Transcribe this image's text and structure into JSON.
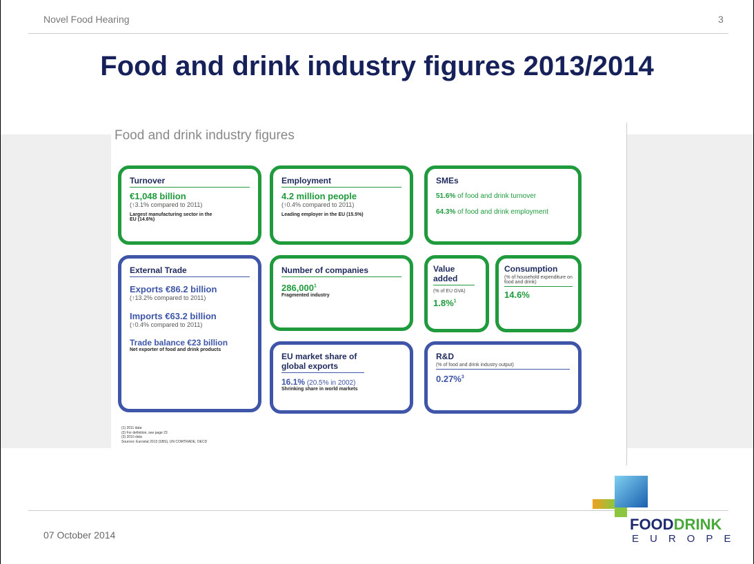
{
  "header": {
    "left": "Novel Food Hearing",
    "page": "3"
  },
  "title": "Food and drink industry figures 2013/2014",
  "figure": {
    "title": "Food and drink industry figures",
    "turnover": {
      "heading": "Turnover",
      "value": "€1,048 billion",
      "change": "(↑3.1% compared to 2011)",
      "note": "Largest manufacturing sector in the EU (14.6%)"
    },
    "employment": {
      "heading": "Employment",
      "value": "4.2 million people",
      "change": "(↑0.4% compared to 2011)",
      "note": "Leading employer in the EU (15.5%)"
    },
    "smes": {
      "heading": "SMEs",
      "items": [
        {
          "value": "51.6%",
          "text": "of food and drink turnover"
        },
        {
          "value": "64.3%",
          "text": "of food and drink employment"
        }
      ]
    },
    "external_trade": {
      "heading": "External Trade",
      "exports": "Exports €86.2 billion",
      "exports_change": "(↑13.2% compared to 2011)",
      "imports": "Imports €63.2 billion",
      "imports_change": "(↑0.4% compared to 2011)",
      "balance": "Trade balance €23 billion",
      "note": "Net exporter of food and drink products"
    },
    "companies": {
      "heading": "Number of companies",
      "value": "286,000",
      "sup": "1",
      "note": "Fragmented industry"
    },
    "value_added": {
      "heading": "Value added",
      "sub": "(% of EU GVA)",
      "value": "1.8%",
      "sup": "1"
    },
    "consumption": {
      "heading": "Consumption",
      "sub": "(% of household expenditure on food and drink)",
      "value": "14.6%"
    },
    "market_share": {
      "heading": "EU market share of global exports",
      "value": "16.1%",
      "detail": "(20.5% in 2002)",
      "note": "Shrinking share in world markets"
    },
    "rd": {
      "heading": "R&D",
      "sub": "(% of food and drink industry output)",
      "value": "0.27%",
      "sup": "3"
    },
    "footnotes": [
      "(1) 2011 data",
      "(2) For definition, see page 23",
      "(3) 2010 data",
      "Sources: Eurostat 2013 (SBS), UN COMTRADE, OECD"
    ]
  },
  "footer": {
    "date": "07 October 2014"
  },
  "logo": {
    "food": "FOOD",
    "drink": "DRINK",
    "europe": "EUROPE"
  }
}
